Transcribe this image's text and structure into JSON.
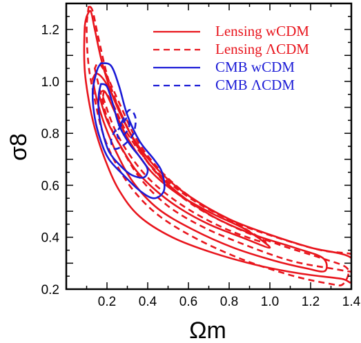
{
  "chart_data": {
    "type": "line",
    "xlabel": "Ωm",
    "ylabel": "σ8",
    "xlim": [
      0.0,
      1.4
    ],
    "ylim": [
      0.2,
      1.3
    ],
    "x_ticks": [
      "0.2",
      "0.4",
      "0.6",
      "0.8",
      "1.0",
      "1.2",
      "1.4"
    ],
    "y_ticks": [
      "0.2",
      "0.4",
      "0.6",
      "0.8",
      "1.0",
      "1.2"
    ],
    "legend_position": "top-right",
    "series": [
      {
        "name": "Lensing wCDM",
        "color": "#e8141c",
        "dash": "solid",
        "contours": [
          [
            [
              0.1,
              1.25
            ],
            [
              0.09,
              1.2
            ],
            [
              0.09,
              1.05
            ],
            [
              0.11,
              0.93
            ],
            [
              0.14,
              0.82
            ],
            [
              0.19,
              0.7
            ],
            [
              0.26,
              0.58
            ],
            [
              0.36,
              0.48
            ],
            [
              0.52,
              0.4
            ],
            [
              0.72,
              0.34
            ],
            [
              0.95,
              0.29
            ],
            [
              1.15,
              0.26
            ],
            [
              1.35,
              0.24
            ],
            [
              1.4,
              0.23
            ],
            [
              1.4,
              0.32
            ],
            [
              1.2,
              0.36
            ],
            [
              1.0,
              0.41
            ],
            [
              0.8,
              0.47
            ],
            [
              0.6,
              0.56
            ],
            [
              0.45,
              0.66
            ],
            [
              0.33,
              0.78
            ],
            [
              0.24,
              0.92
            ],
            [
              0.18,
              1.06
            ],
            [
              0.14,
              1.2
            ],
            [
              0.12,
              1.27
            ],
            [
              0.1,
              1.25
            ]
          ],
          [
            [
              0.13,
              1.01
            ],
            [
              0.15,
              0.93
            ],
            [
              0.19,
              0.83
            ],
            [
              0.25,
              0.72
            ],
            [
              0.33,
              0.61
            ],
            [
              0.45,
              0.51
            ],
            [
              0.62,
              0.43
            ],
            [
              0.82,
              0.36
            ],
            [
              1.02,
              0.31
            ],
            [
              1.18,
              0.28
            ],
            [
              1.27,
              0.27
            ],
            [
              1.26,
              0.32
            ],
            [
              1.12,
              0.36
            ],
            [
              0.92,
              0.41
            ],
            [
              0.72,
              0.48
            ],
            [
              0.55,
              0.57
            ],
            [
              0.42,
              0.67
            ],
            [
              0.32,
              0.79
            ],
            [
              0.25,
              0.91
            ],
            [
              0.19,
              1.0
            ],
            [
              0.15,
              1.03
            ],
            [
              0.13,
              1.01
            ]
          ],
          [
            [
              0.16,
              0.95
            ],
            [
              0.2,
              0.85
            ],
            [
              0.26,
              0.76
            ],
            [
              0.34,
              0.66
            ],
            [
              0.44,
              0.58
            ],
            [
              0.56,
              0.51
            ],
            [
              0.7,
              0.45
            ],
            [
              0.86,
              0.4
            ],
            [
              1.0,
              0.36
            ],
            [
              0.88,
              0.43
            ],
            [
              0.72,
              0.49
            ],
            [
              0.56,
              0.56
            ],
            [
              0.42,
              0.65
            ],
            [
              0.31,
              0.77
            ],
            [
              0.24,
              0.88
            ],
            [
              0.19,
              0.96
            ],
            [
              0.16,
              0.95
            ]
          ]
        ]
      },
      {
        "name": "Lensing ΛCDM",
        "color": "#e8141c",
        "dash": "dashed",
        "contours": [
          [
            [
              0.11,
              1.29
            ],
            [
              0.1,
              1.2
            ],
            [
              0.11,
              1.06
            ],
            [
              0.14,
              0.93
            ],
            [
              0.18,
              0.8
            ],
            [
              0.24,
              0.69
            ],
            [
              0.33,
              0.58
            ],
            [
              0.46,
              0.48
            ],
            [
              0.65,
              0.39
            ],
            [
              0.88,
              0.31
            ],
            [
              1.12,
              0.25
            ],
            [
              1.3,
              0.22
            ],
            [
              1.36,
              0.22
            ],
            [
              1.38,
              0.28
            ],
            [
              1.25,
              0.32
            ],
            [
              1.05,
              0.37
            ],
            [
              0.85,
              0.43
            ],
            [
              0.65,
              0.51
            ],
            [
              0.5,
              0.6
            ],
            [
              0.38,
              0.71
            ],
            [
              0.29,
              0.84
            ],
            [
              0.21,
              1.0
            ],
            [
              0.16,
              1.16
            ],
            [
              0.13,
              1.27
            ],
            [
              0.11,
              1.29
            ]
          ],
          [
            [
              0.14,
              1.05
            ],
            [
              0.17,
              0.95
            ],
            [
              0.21,
              0.84
            ],
            [
              0.28,
              0.73
            ],
            [
              0.37,
              0.62
            ],
            [
              0.5,
              0.52
            ],
            [
              0.67,
              0.44
            ],
            [
              0.88,
              0.37
            ],
            [
              1.1,
              0.31
            ],
            [
              1.3,
              0.28
            ],
            [
              1.43,
              0.27
            ],
            [
              1.42,
              0.33
            ],
            [
              1.25,
              0.35
            ],
            [
              1.03,
              0.4
            ],
            [
              0.82,
              0.46
            ],
            [
              0.62,
              0.55
            ],
            [
              0.47,
              0.65
            ],
            [
              0.35,
              0.77
            ],
            [
              0.27,
              0.9
            ],
            [
              0.2,
              1.02
            ],
            [
              0.16,
              1.07
            ],
            [
              0.14,
              1.05
            ]
          ],
          [
            [
              0.18,
              0.94
            ],
            [
              0.23,
              0.83
            ],
            [
              0.3,
              0.73
            ],
            [
              0.4,
              0.63
            ],
            [
              0.52,
              0.55
            ],
            [
              0.66,
              0.48
            ],
            [
              0.82,
              0.42
            ],
            [
              0.98,
              0.38
            ],
            [
              0.84,
              0.45
            ],
            [
              0.67,
              0.52
            ],
            [
              0.52,
              0.6
            ],
            [
              0.4,
              0.69
            ],
            [
              0.3,
              0.8
            ],
            [
              0.23,
              0.91
            ],
            [
              0.19,
              0.96
            ],
            [
              0.18,
              0.94
            ]
          ]
        ]
      },
      {
        "name": "CMB wCDM",
        "color": "#1a1ad6",
        "dash": "solid",
        "contours": [
          [
            [
              0.17,
              1.07
            ],
            [
              0.22,
              1.06
            ],
            [
              0.26,
              0.98
            ],
            [
              0.3,
              0.87
            ],
            [
              0.36,
              0.77
            ],
            [
              0.43,
              0.7
            ],
            [
              0.47,
              0.65
            ],
            [
              0.48,
              0.58
            ],
            [
              0.43,
              0.55
            ],
            [
              0.36,
              0.58
            ],
            [
              0.28,
              0.64
            ],
            [
              0.21,
              0.7
            ],
            [
              0.17,
              0.77
            ],
            [
              0.14,
              0.86
            ],
            [
              0.13,
              0.96
            ],
            [
              0.15,
              1.04
            ],
            [
              0.17,
              1.07
            ]
          ],
          [
            [
              0.17,
              0.99
            ],
            [
              0.2,
              0.98
            ],
            [
              0.23,
              0.91
            ],
            [
              0.26,
              0.83
            ],
            [
              0.31,
              0.76
            ],
            [
              0.37,
              0.7
            ],
            [
              0.4,
              0.66
            ],
            [
              0.38,
              0.63
            ],
            [
              0.32,
              0.64
            ],
            [
              0.26,
              0.68
            ],
            [
              0.21,
              0.73
            ],
            [
              0.18,
              0.8
            ],
            [
              0.16,
              0.88
            ],
            [
              0.16,
              0.95
            ],
            [
              0.17,
              0.99
            ]
          ]
        ]
      },
      {
        "name": "CMB ΛCDM",
        "color": "#1a1ad6",
        "dash": "dashed",
        "contours": [
          [
            [
              0.27,
              0.84
            ],
            [
              0.31,
              0.89
            ],
            [
              0.34,
              0.86
            ],
            [
              0.33,
              0.8
            ],
            [
              0.29,
              0.76
            ],
            [
              0.24,
              0.74
            ],
            [
              0.22,
              0.77
            ],
            [
              0.24,
              0.81
            ],
            [
              0.27,
              0.84
            ]
          ],
          [
            [
              0.28,
              0.84
            ],
            [
              0.3,
              0.86
            ],
            [
              0.31,
              0.83
            ],
            [
              0.29,
              0.8
            ],
            [
              0.26,
              0.78
            ],
            [
              0.25,
              0.8
            ],
            [
              0.26,
              0.82
            ],
            [
              0.28,
              0.84
            ]
          ]
        ]
      }
    ]
  }
}
